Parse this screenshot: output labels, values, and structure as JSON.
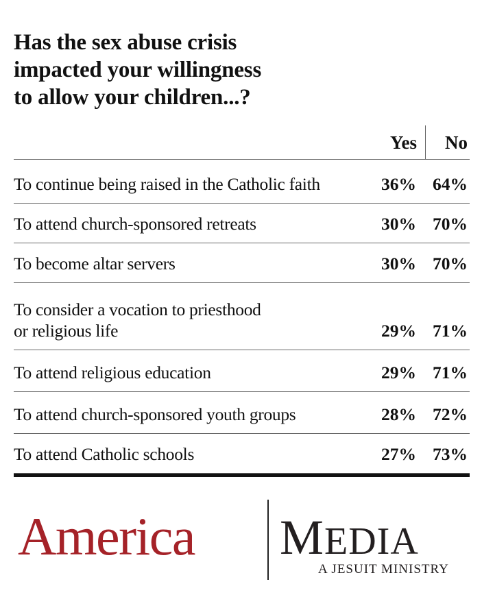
{
  "chart_data": {
    "type": "table",
    "title": "Has the sex abuse crisis impacted your willingness to allow your children...?",
    "title_lines": [
      "Has the sex abuse crisis",
      "impacted your willingness",
      "to allow your children...?"
    ],
    "columns": [
      "Yes",
      "No"
    ],
    "rows": [
      {
        "label_lines": [
          "To continue being raised in the Catholic faith"
        ],
        "yes": "36%",
        "no": "64%"
      },
      {
        "label_lines": [
          "To attend church-sponsored retreats"
        ],
        "yes": "30%",
        "no": "70%"
      },
      {
        "label_lines": [
          "To become altar servers"
        ],
        "yes": "30%",
        "no": "70%"
      },
      {
        "label_lines": [
          "To consider a vocation to priesthood",
          "or religious life"
        ],
        "yes": "29%",
        "no": "71%"
      },
      {
        "label_lines": [
          "To attend religious education"
        ],
        "yes": "29%",
        "no": "71%"
      },
      {
        "label_lines": [
          "To attend church-sponsored youth groups"
        ],
        "yes": "28%",
        "no": "72%"
      },
      {
        "label_lines": [
          "To attend Catholic schools"
        ],
        "yes": "27%",
        "no": "73%"
      }
    ]
  },
  "logo": {
    "america": "America",
    "media_first": "M",
    "media_rest": "EDIA",
    "tagline": "A JESUIT MINISTRY",
    "brand_color": "#a52228"
  }
}
